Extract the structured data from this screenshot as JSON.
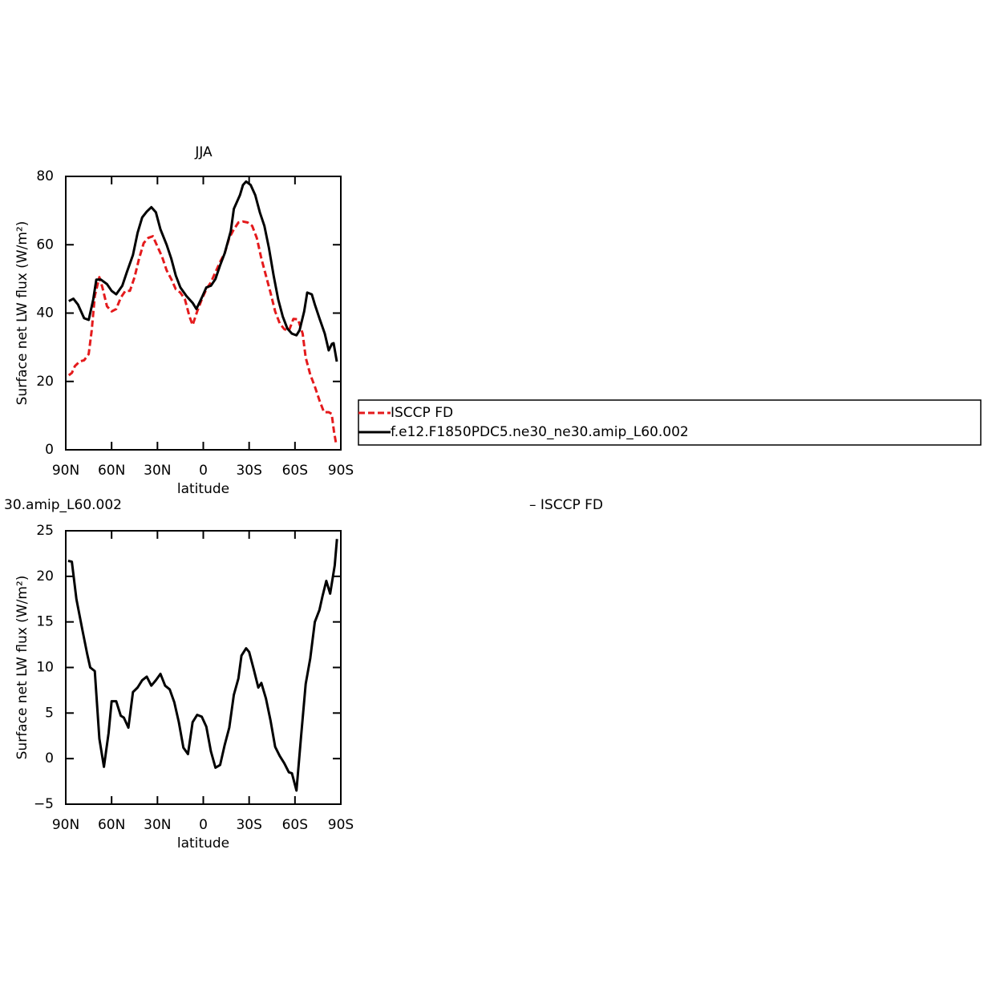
{
  "chart_data": [
    {
      "type": "line",
      "title": "JJA",
      "xlabel": "latitude",
      "ylabel": "Surface net LW flux (W/m²)",
      "xlim": [
        90,
        -90
      ],
      "xticks": [
        {
          "value": 90,
          "label": "90N"
        },
        {
          "value": 60,
          "label": "60N"
        },
        {
          "value": 30,
          "label": "30N"
        },
        0,
        {
          "value": -30,
          "label": "30S"
        },
        {
          "value": -60,
          "label": "60S"
        },
        {
          "value": -90,
          "label": "90S"
        }
      ],
      "ylim": [
        0,
        80
      ],
      "yticks": [
        0,
        20,
        40,
        60,
        80
      ],
      "legend": true,
      "series": [
        {
          "name": "ISCCP FD",
          "color": "#e41a1c",
          "dash": true,
          "x": [
            88,
            86,
            84,
            81,
            78,
            75,
            73,
            71,
            68,
            66,
            63,
            60,
            57,
            54,
            51,
            48,
            45,
            42,
            39,
            36,
            33,
            30,
            27,
            24,
            21,
            18,
            15,
            12,
            9,
            7,
            4,
            1,
            -2,
            -5,
            -8,
            -11,
            -14,
            -17,
            -20,
            -23,
            -26,
            -29,
            -32,
            -35,
            -38,
            -41,
            -44,
            -47,
            -50,
            -53,
            -56,
            -59,
            -62,
            -65,
            -67,
            -70,
            -73,
            -76,
            -79,
            -82,
            -84,
            -85.5,
            -87
          ],
          "values": [
            21.8,
            22.5,
            24.5,
            25.8,
            26.2,
            28,
            35,
            45,
            50.5,
            47.5,
            42,
            40.5,
            41.2,
            44.5,
            46.5,
            46.5,
            50.5,
            56,
            60.5,
            62,
            62.5,
            59.5,
            56.5,
            52.5,
            50,
            47,
            46,
            44,
            39,
            36.5,
            40.5,
            44,
            47,
            49,
            52,
            55,
            57.5,
            62,
            64.5,
            66.5,
            66.8,
            66.5,
            65.5,
            62,
            56,
            51,
            46,
            40.5,
            37,
            35.3,
            34.8,
            38.3,
            38.2,
            34,
            27,
            22,
            18.5,
            14.5,
            11,
            11,
            10.5,
            5.5,
            1.5
          ]
        },
        {
          "name": "f.e12.F1850PDC5.ne30_ne30.amip_L60.002",
          "color": "#000000",
          "dash": false,
          "x": [
            88,
            85,
            82,
            78,
            75,
            72,
            70,
            67,
            63,
            60,
            57,
            53,
            50,
            46,
            43,
            40,
            37,
            34,
            31,
            28,
            24,
            21,
            18,
            15,
            11,
            7,
            4.5,
            1,
            -2,
            -5,
            -8,
            -11,
            -14,
            -18,
            -20,
            -24,
            -26,
            -28,
            -31,
            -34,
            -37,
            -40,
            -43,
            -46,
            -49,
            -52,
            -55,
            -58,
            -61,
            -63,
            -66,
            -68,
            -71,
            -73,
            -76,
            -79.5,
            -82.1,
            -84.2,
            -85.3,
            -87.4
          ],
          "values": [
            43.5,
            44.2,
            42.5,
            38.5,
            38,
            44,
            49.8,
            49.8,
            48.5,
            46.5,
            45.5,
            48,
            52,
            57,
            63.5,
            68,
            69.7,
            71,
            69.5,
            64.5,
            60,
            56,
            51,
            47.5,
            45,
            43,
            41.2,
            44.5,
            47.5,
            48,
            50,
            54,
            57.5,
            64,
            70.5,
            74.5,
            77.5,
            78.5,
            77.5,
            74.5,
            69.5,
            65.5,
            59,
            51,
            44,
            39,
            35.5,
            34,
            33.5,
            35,
            40.5,
            46,
            45.5,
            42.5,
            38.5,
            34,
            29.1,
            31,
            31.2,
            25.8
          ]
        }
      ]
    },
    {
      "type": "line",
      "title": "30.amip_L60.002",
      "annotation": "– ISCCP FD",
      "xlabel": "latitude",
      "ylabel": "Surface net LW flux (W/m²)",
      "xlim": [
        90,
        -90
      ],
      "xticks": [
        {
          "value": 90,
          "label": "90N"
        },
        {
          "value": 60,
          "label": "60N"
        },
        {
          "value": 30,
          "label": "30N"
        },
        0,
        {
          "value": -30,
          "label": "30S"
        },
        {
          "value": -60,
          "label": "60S"
        },
        {
          "value": -90,
          "label": "90S"
        }
      ],
      "ylim": [
        -5,
        25
      ],
      "yticks": [
        {
          "value": -5,
          "label": "−5"
        },
        0,
        5,
        10,
        15,
        20,
        25
      ],
      "legend": false,
      "series": [
        {
          "color": "#000000",
          "dash": false,
          "x": [
            88.5,
            86,
            83,
            79,
            76,
            74,
            71,
            68,
            65,
            62,
            60,
            57,
            54,
            52,
            49,
            46,
            43,
            40,
            37,
            34,
            31,
            28,
            25,
            22,
            19,
            16,
            13,
            10,
            7,
            4,
            1,
            -2,
            -5,
            -8,
            -11,
            -14,
            -17,
            -20,
            -23,
            -25,
            -28,
            -30,
            -33,
            -36,
            -38,
            -41,
            -44,
            -47,
            -50,
            -53,
            -56,
            -58,
            -61,
            -64,
            -67,
            -70,
            -73,
            -76,
            -78,
            -80.5,
            -83,
            -86,
            -87.5
          ],
          "values": [
            21.7,
            21.6,
            17.5,
            14,
            11.5,
            10,
            9.6,
            2.2,
            -0.9,
            2.8,
            6.3,
            6.3,
            4.7,
            4.5,
            3.4,
            7.3,
            7.8,
            8.6,
            9,
            8,
            8.6,
            9.3,
            8,
            7.6,
            6.2,
            4,
            1.2,
            0.5,
            4,
            4.8,
            4.6,
            3.5,
            0.8,
            -1,
            -0.7,
            1.5,
            3.4,
            7,
            8.8,
            11.3,
            12.1,
            11.7,
            9.8,
            7.8,
            8.3,
            6.6,
            4.2,
            1.3,
            0.3,
            -0.5,
            -1.5,
            -1.6,
            -3.5,
            2.5,
            8.2,
            11,
            15,
            16.3,
            17.8,
            19.5,
            18.1,
            21.2,
            24.1
          ]
        }
      ]
    }
  ]
}
